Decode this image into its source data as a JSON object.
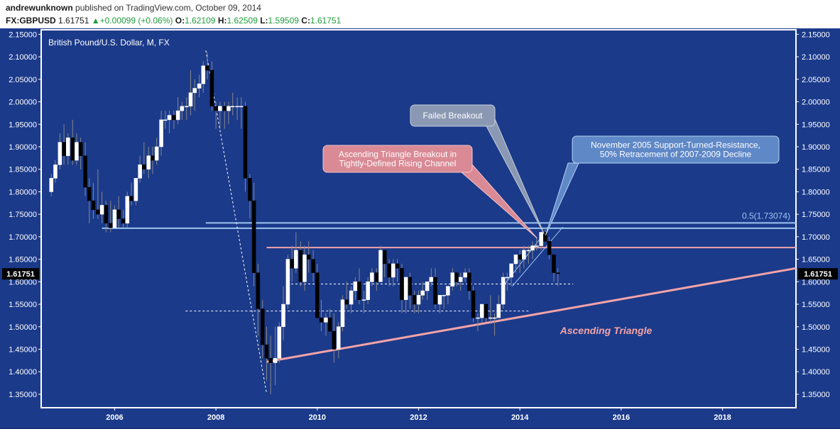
{
  "header": {
    "user": "andrewunknown",
    "published": "published on TradingView.com, October 09, 2014",
    "symbol": "FX:GBPUSD",
    "last": "1.61751",
    "change": "+0.00099 (+0.06%)",
    "o_label": "O:",
    "o": "1.62109",
    "h_label": "H:",
    "h": "1.62509",
    "l_label": "L:",
    "l": "1.59509",
    "c_label": "C:",
    "c": "1.61751"
  },
  "colors": {
    "background": "#1b3a8a",
    "frame": "#ffffff",
    "up_candle": "#ffffff",
    "down_candle": "#000000",
    "salmon": "#f4a3a8",
    "light_blue": "#9cc6ef",
    "pink_box": "#d98a95",
    "gray_box": "#8a98b3",
    "blue_box": "#5f88c7"
  },
  "chart_data": {
    "type": "candlestick",
    "title": "British Pound/U.S. Dollar, M, FX",
    "xlabel": "",
    "ylabel": "",
    "ylim": [
      1.32,
      2.16
    ],
    "xlim": [
      2004.55,
      2019.45
    ],
    "x_ticks": [
      "2006",
      "2008",
      "2010",
      "2012",
      "2014",
      "2016",
      "2018"
    ],
    "x_tick_values": [
      2006,
      2008,
      2010,
      2012,
      2014,
      2016,
      2018
    ],
    "y_ticks": [
      "1.35000",
      "1.40000",
      "1.45000",
      "1.50000",
      "1.55000",
      "1.60000",
      "1.65000",
      "1.70000",
      "1.75000",
      "1.80000",
      "1.85000",
      "1.90000",
      "1.95000",
      "2.00000",
      "2.05000",
      "2.10000",
      "2.15000"
    ],
    "y_tick_values": [
      1.35,
      1.4,
      1.45,
      1.5,
      1.55,
      1.6,
      1.65,
      1.7,
      1.75,
      1.8,
      1.85,
      1.9,
      1.95,
      2.0,
      2.05,
      2.1,
      2.15
    ],
    "last_price_label": "1.61751",
    "last_price": 1.61751,
    "candles": [
      {
        "t": 2004.75,
        "o": 1.8,
        "h": 1.84,
        "l": 1.79,
        "c": 1.83
      },
      {
        "t": 2004.83,
        "o": 1.83,
        "h": 1.87,
        "l": 1.82,
        "c": 1.86
      },
      {
        "t": 2004.92,
        "o": 1.86,
        "h": 1.93,
        "l": 1.85,
        "c": 1.91
      },
      {
        "t": 2005.0,
        "o": 1.91,
        "h": 1.95,
        "l": 1.86,
        "c": 1.88
      },
      {
        "t": 2005.08,
        "o": 1.88,
        "h": 1.93,
        "l": 1.86,
        "c": 1.92
      },
      {
        "t": 2005.17,
        "o": 1.92,
        "h": 1.96,
        "l": 1.86,
        "c": 1.87
      },
      {
        "t": 2005.25,
        "o": 1.87,
        "h": 1.93,
        "l": 1.86,
        "c": 1.91
      },
      {
        "t": 2005.33,
        "o": 1.91,
        "h": 1.92,
        "l": 1.85,
        "c": 1.88
      },
      {
        "t": 2005.42,
        "o": 1.88,
        "h": 1.91,
        "l": 1.79,
        "c": 1.81
      },
      {
        "t": 2005.5,
        "o": 1.81,
        "h": 1.83,
        "l": 1.73,
        "c": 1.78
      },
      {
        "t": 2005.58,
        "o": 1.78,
        "h": 1.82,
        "l": 1.74,
        "c": 1.76
      },
      {
        "t": 2005.67,
        "o": 1.76,
        "h": 1.85,
        "l": 1.74,
        "c": 1.75
      },
      {
        "t": 2005.75,
        "o": 1.75,
        "h": 1.8,
        "l": 1.73,
        "c": 1.77
      },
      {
        "t": 2005.83,
        "o": 1.77,
        "h": 1.78,
        "l": 1.71,
        "c": 1.73
      },
      {
        "t": 2005.92,
        "o": 1.73,
        "h": 1.78,
        "l": 1.71,
        "c": 1.72
      },
      {
        "t": 2006.0,
        "o": 1.72,
        "h": 1.77,
        "l": 1.72,
        "c": 1.76
      },
      {
        "t": 2006.08,
        "o": 1.76,
        "h": 1.79,
        "l": 1.72,
        "c": 1.74
      },
      {
        "t": 2006.17,
        "o": 1.74,
        "h": 1.76,
        "l": 1.72,
        "c": 1.73
      },
      {
        "t": 2006.25,
        "o": 1.73,
        "h": 1.8,
        "l": 1.72,
        "c": 1.79
      },
      {
        "t": 2006.33,
        "o": 1.79,
        "h": 1.82,
        "l": 1.77,
        "c": 1.78
      },
      {
        "t": 2006.42,
        "o": 1.78,
        "h": 1.83,
        "l": 1.77,
        "c": 1.83
      },
      {
        "t": 2006.5,
        "o": 1.83,
        "h": 1.88,
        "l": 1.82,
        "c": 1.86
      },
      {
        "t": 2006.58,
        "o": 1.86,
        "h": 1.91,
        "l": 1.84,
        "c": 1.85
      },
      {
        "t": 2006.67,
        "o": 1.85,
        "h": 1.9,
        "l": 1.83,
        "c": 1.88
      },
      {
        "t": 2006.75,
        "o": 1.88,
        "h": 1.9,
        "l": 1.84,
        "c": 1.87
      },
      {
        "t": 2006.83,
        "o": 1.87,
        "h": 1.92,
        "l": 1.86,
        "c": 1.9
      },
      {
        "t": 2006.92,
        "o": 1.9,
        "h": 1.98,
        "l": 1.88,
        "c": 1.96
      },
      {
        "t": 2007.0,
        "o": 1.96,
        "h": 1.98,
        "l": 1.94,
        "c": 1.96
      },
      {
        "t": 2007.08,
        "o": 1.96,
        "h": 1.98,
        "l": 1.93,
        "c": 1.97
      },
      {
        "t": 2007.17,
        "o": 1.97,
        "h": 1.98,
        "l": 1.94,
        "c": 1.96
      },
      {
        "t": 2007.25,
        "o": 1.96,
        "h": 2.01,
        "l": 1.95,
        "c": 1.98
      },
      {
        "t": 2007.33,
        "o": 1.98,
        "h": 2.0,
        "l": 1.96,
        "c": 1.99
      },
      {
        "t": 2007.42,
        "o": 1.99,
        "h": 2.01,
        "l": 1.96,
        "c": 1.99
      },
      {
        "t": 2007.5,
        "o": 1.99,
        "h": 2.07,
        "l": 1.97,
        "c": 2.02
      },
      {
        "t": 2007.58,
        "o": 2.02,
        "h": 2.05,
        "l": 1.98,
        "c": 2.03
      },
      {
        "t": 2007.67,
        "o": 2.03,
        "h": 2.06,
        "l": 2.01,
        "c": 2.04
      },
      {
        "t": 2007.75,
        "o": 2.04,
        "h": 2.09,
        "l": 2.02,
        "c": 2.08
      },
      {
        "t": 2007.83,
        "o": 2.08,
        "h": 2.11,
        "l": 2.05,
        "c": 2.07
      },
      {
        "t": 2007.92,
        "o": 2.07,
        "h": 2.09,
        "l": 1.98,
        "c": 1.99
      },
      {
        "t": 2008.0,
        "o": 1.99,
        "h": 2.0,
        "l": 1.94,
        "c": 1.98
      },
      {
        "t": 2008.08,
        "o": 1.98,
        "h": 2.0,
        "l": 1.94,
        "c": 1.99
      },
      {
        "t": 2008.17,
        "o": 1.99,
        "h": 2.0,
        "l": 1.94,
        "c": 1.98
      },
      {
        "t": 2008.25,
        "o": 1.98,
        "h": 2.0,
        "l": 1.95,
        "c": 1.99
      },
      {
        "t": 2008.33,
        "o": 1.99,
        "h": 2.02,
        "l": 1.97,
        "c": 1.99
      },
      {
        "t": 2008.42,
        "o": 1.99,
        "h": 2.01,
        "l": 1.96,
        "c": 1.99
      },
      {
        "t": 2008.5,
        "o": 1.99,
        "h": 2.01,
        "l": 1.94,
        "c": 1.99
      },
      {
        "t": 2008.58,
        "o": 1.99,
        "h": 2.0,
        "l": 1.8,
        "c": 1.83
      },
      {
        "t": 2008.67,
        "o": 1.83,
        "h": 1.84,
        "l": 1.74,
        "c": 1.78
      },
      {
        "t": 2008.75,
        "o": 1.78,
        "h": 1.82,
        "l": 1.59,
        "c": 1.62
      },
      {
        "t": 2008.83,
        "o": 1.62,
        "h": 1.64,
        "l": 1.48,
        "c": 1.54
      },
      {
        "t": 2008.92,
        "o": 1.54,
        "h": 1.56,
        "l": 1.43,
        "c": 1.46
      },
      {
        "t": 2009.0,
        "o": 1.46,
        "h": 1.5,
        "l": 1.38,
        "c": 1.43
      },
      {
        "t": 2009.08,
        "o": 1.43,
        "h": 1.48,
        "l": 1.35,
        "c": 1.42
      },
      {
        "t": 2009.17,
        "o": 1.42,
        "h": 1.5,
        "l": 1.37,
        "c": 1.43
      },
      {
        "t": 2009.25,
        "o": 1.43,
        "h": 1.51,
        "l": 1.42,
        "c": 1.5
      },
      {
        "t": 2009.33,
        "o": 1.5,
        "h": 1.59,
        "l": 1.47,
        "c": 1.55
      },
      {
        "t": 2009.42,
        "o": 1.55,
        "h": 1.66,
        "l": 1.54,
        "c": 1.65
      },
      {
        "t": 2009.5,
        "o": 1.65,
        "h": 1.68,
        "l": 1.6,
        "c": 1.63
      },
      {
        "t": 2009.58,
        "o": 1.63,
        "h": 1.71,
        "l": 1.62,
        "c": 1.67
      },
      {
        "t": 2009.67,
        "o": 1.67,
        "h": 1.69,
        "l": 1.59,
        "c": 1.6
      },
      {
        "t": 2009.75,
        "o": 1.6,
        "h": 1.68,
        "l": 1.58,
        "c": 1.66
      },
      {
        "t": 2009.83,
        "o": 1.66,
        "h": 1.69,
        "l": 1.62,
        "c": 1.65
      },
      {
        "t": 2009.92,
        "o": 1.65,
        "h": 1.67,
        "l": 1.6,
        "c": 1.62
      },
      {
        "t": 2010.0,
        "o": 1.62,
        "h": 1.64,
        "l": 1.52,
        "c": 1.52
      },
      {
        "t": 2010.08,
        "o": 1.52,
        "h": 1.56,
        "l": 1.49,
        "c": 1.51
      },
      {
        "t": 2010.17,
        "o": 1.51,
        "h": 1.53,
        "l": 1.48,
        "c": 1.52
      },
      {
        "t": 2010.25,
        "o": 1.52,
        "h": 1.54,
        "l": 1.49,
        "c": 1.49
      },
      {
        "t": 2010.33,
        "o": 1.49,
        "h": 1.53,
        "l": 1.42,
        "c": 1.45
      },
      {
        "t": 2010.42,
        "o": 1.45,
        "h": 1.51,
        "l": 1.43,
        "c": 1.5
      },
      {
        "t": 2010.5,
        "o": 1.5,
        "h": 1.57,
        "l": 1.49,
        "c": 1.56
      },
      {
        "t": 2010.58,
        "o": 1.56,
        "h": 1.6,
        "l": 1.54,
        "c": 1.55
      },
      {
        "t": 2010.67,
        "o": 1.55,
        "h": 1.59,
        "l": 1.53,
        "c": 1.58
      },
      {
        "t": 2010.75,
        "o": 1.58,
        "h": 1.61,
        "l": 1.56,
        "c": 1.6
      },
      {
        "t": 2010.83,
        "o": 1.6,
        "h": 1.63,
        "l": 1.55,
        "c": 1.56
      },
      {
        "t": 2010.92,
        "o": 1.56,
        "h": 1.58,
        "l": 1.53,
        "c": 1.56
      },
      {
        "t": 2011.0,
        "o": 1.56,
        "h": 1.61,
        "l": 1.55,
        "c": 1.6
      },
      {
        "t": 2011.08,
        "o": 1.6,
        "h": 1.63,
        "l": 1.59,
        "c": 1.62
      },
      {
        "t": 2011.17,
        "o": 1.62,
        "h": 1.63,
        "l": 1.58,
        "c": 1.6
      },
      {
        "t": 2011.25,
        "o": 1.6,
        "h": 1.68,
        "l": 1.6,
        "c": 1.67
      },
      {
        "t": 2011.33,
        "o": 1.67,
        "h": 1.67,
        "l": 1.61,
        "c": 1.64
      },
      {
        "t": 2011.42,
        "o": 1.64,
        "h": 1.65,
        "l": 1.59,
        "c": 1.61
      },
      {
        "t": 2011.5,
        "o": 1.61,
        "h": 1.65,
        "l": 1.59,
        "c": 1.64
      },
      {
        "t": 2011.58,
        "o": 1.64,
        "h": 1.65,
        "l": 1.6,
        "c": 1.63
      },
      {
        "t": 2011.67,
        "o": 1.63,
        "h": 1.64,
        "l": 1.53,
        "c": 1.56
      },
      {
        "t": 2011.75,
        "o": 1.56,
        "h": 1.61,
        "l": 1.53,
        "c": 1.61
      },
      {
        "t": 2011.83,
        "o": 1.61,
        "h": 1.62,
        "l": 1.54,
        "c": 1.57
      },
      {
        "t": 2011.92,
        "o": 1.57,
        "h": 1.58,
        "l": 1.53,
        "c": 1.55
      },
      {
        "t": 2012.0,
        "o": 1.55,
        "h": 1.58,
        "l": 1.53,
        "c": 1.57
      },
      {
        "t": 2012.08,
        "o": 1.57,
        "h": 1.6,
        "l": 1.56,
        "c": 1.58
      },
      {
        "t": 2012.17,
        "o": 1.58,
        "h": 1.6,
        "l": 1.56,
        "c": 1.6
      },
      {
        "t": 2012.25,
        "o": 1.6,
        "h": 1.63,
        "l": 1.59,
        "c": 1.61
      },
      {
        "t": 2012.33,
        "o": 1.61,
        "h": 1.63,
        "l": 1.54,
        "c": 1.55
      },
      {
        "t": 2012.42,
        "o": 1.55,
        "h": 1.57,
        "l": 1.53,
        "c": 1.57
      },
      {
        "t": 2012.5,
        "o": 1.57,
        "h": 1.57,
        "l": 1.54,
        "c": 1.57
      },
      {
        "t": 2012.58,
        "o": 1.57,
        "h": 1.59,
        "l": 1.55,
        "c": 1.59
      },
      {
        "t": 2012.67,
        "o": 1.59,
        "h": 1.63,
        "l": 1.58,
        "c": 1.62
      },
      {
        "t": 2012.75,
        "o": 1.62,
        "h": 1.62,
        "l": 1.59,
        "c": 1.6
      },
      {
        "t": 2012.83,
        "o": 1.6,
        "h": 1.62,
        "l": 1.58,
        "c": 1.61
      },
      {
        "t": 2012.92,
        "o": 1.61,
        "h": 1.63,
        "l": 1.6,
        "c": 1.62
      },
      {
        "t": 2013.0,
        "o": 1.62,
        "h": 1.63,
        "l": 1.56,
        "c": 1.58
      },
      {
        "t": 2013.08,
        "o": 1.58,
        "h": 1.59,
        "l": 1.51,
        "c": 1.52
      },
      {
        "t": 2013.17,
        "o": 1.52,
        "h": 1.53,
        "l": 1.49,
        "c": 1.52
      },
      {
        "t": 2013.25,
        "o": 1.52,
        "h": 1.55,
        "l": 1.51,
        "c": 1.55
      },
      {
        "t": 2013.33,
        "o": 1.55,
        "h": 1.55,
        "l": 1.51,
        "c": 1.52
      },
      {
        "t": 2013.42,
        "o": 1.52,
        "h": 1.57,
        "l": 1.51,
        "c": 1.52
      },
      {
        "t": 2013.5,
        "o": 1.52,
        "h": 1.53,
        "l": 1.48,
        "c": 1.52
      },
      {
        "t": 2013.58,
        "o": 1.52,
        "h": 1.57,
        "l": 1.52,
        "c": 1.55
      },
      {
        "t": 2013.67,
        "o": 1.55,
        "h": 1.62,
        "l": 1.54,
        "c": 1.61
      },
      {
        "t": 2013.75,
        "o": 1.61,
        "h": 1.62,
        "l": 1.58,
        "c": 1.61
      },
      {
        "t": 2013.83,
        "o": 1.61,
        "h": 1.64,
        "l": 1.59,
        "c": 1.64
      },
      {
        "t": 2013.92,
        "o": 1.64,
        "h": 1.66,
        "l": 1.62,
        "c": 1.66
      },
      {
        "t": 2014.0,
        "o": 1.66,
        "h": 1.67,
        "l": 1.62,
        "c": 1.65
      },
      {
        "t": 2014.08,
        "o": 1.65,
        "h": 1.68,
        "l": 1.63,
        "c": 1.67
      },
      {
        "t": 2014.17,
        "o": 1.67,
        "h": 1.68,
        "l": 1.64,
        "c": 1.67
      },
      {
        "t": 2014.25,
        "o": 1.67,
        "h": 1.69,
        "l": 1.65,
        "c": 1.68
      },
      {
        "t": 2014.33,
        "o": 1.68,
        "h": 1.7,
        "l": 1.67,
        "c": 1.68
      },
      {
        "t": 2014.42,
        "o": 1.68,
        "h": 1.71,
        "l": 1.67,
        "c": 1.71
      },
      {
        "t": 2014.5,
        "o": 1.71,
        "h": 1.72,
        "l": 1.69,
        "c": 1.69
      },
      {
        "t": 2014.58,
        "o": 1.69,
        "h": 1.7,
        "l": 1.65,
        "c": 1.66
      },
      {
        "t": 2014.67,
        "o": 1.66,
        "h": 1.66,
        "l": 1.6,
        "c": 1.62
      },
      {
        "t": 2014.75,
        "o": 1.62,
        "h": 1.63,
        "l": 1.59,
        "c": 1.618
      }
    ],
    "horizontal_lines": [
      {
        "price": 1.73074,
        "x1": 2007.8,
        "x2": 2019.45,
        "color": "light_blue",
        "label": "0.5(1.73074)"
      },
      {
        "price": 1.719,
        "x1": 2005.75,
        "x2": 2019.45,
        "color": "light_blue"
      },
      {
        "price": 1.676,
        "x1": 2009.0,
        "x2": 2019.45,
        "color": "salmon"
      },
      {
        "price": 1.595,
        "x1": 2009.4,
        "x2": 2015.05,
        "color": "white",
        "dashed": true
      },
      {
        "price": 1.535,
        "x1": 2007.4,
        "x2": 2014.2,
        "color": "white",
        "dashed": true
      }
    ],
    "trend_lines": [
      {
        "x1": 2009.0,
        "y1": 1.422,
        "x2": 2019.45,
        "y2": 1.63,
        "color": "salmon",
        "width": 3
      },
      {
        "x1": 2013.7,
        "y1": 1.595,
        "x2": 2014.5,
        "y2": 1.71,
        "color": "light_blue",
        "width": 1
      },
      {
        "x1": 2013.85,
        "y1": 1.59,
        "x2": 2014.85,
        "y2": 1.722,
        "color": "light_blue",
        "width": 1
      },
      {
        "x1": 2007.8,
        "y1": 2.114,
        "x2": 2009.0,
        "y2": 1.352,
        "color": "white",
        "width": 1,
        "dashed": true
      }
    ],
    "annotations": [
      {
        "text": "Failed Breakout",
        "style": "gray_box"
      },
      {
        "text": "Ascending Triangle Breakout in\nTightly-Defined Rising Channel",
        "style": "pink_box"
      },
      {
        "text": "November 2005 Support-Turned-Resistance,\n50% Retracement of 2007-2009 Decline",
        "style": "blue_box"
      },
      {
        "text": "Ascending Triangle",
        "style": "salmon_italic"
      }
    ]
  }
}
